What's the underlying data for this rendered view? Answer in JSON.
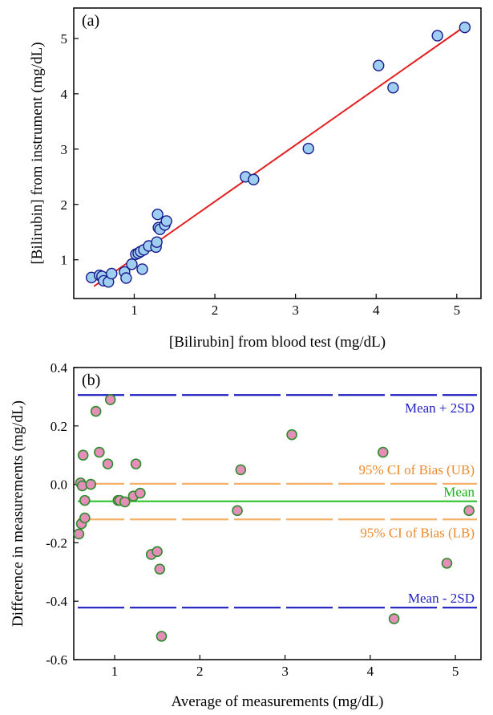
{
  "chart_data": [
    {
      "type": "scatter",
      "panel_label": "(a)",
      "xlabel": "[Bilirubin] from blood test (mg/dL)",
      "ylabel": "[Bilirubin] from instrument (mg/dL)",
      "xlim": [
        0.25,
        5.3
      ],
      "ylim": [
        0.3,
        5.55
      ],
      "xticks": [
        "1",
        "2",
        "3",
        "4",
        "5"
      ],
      "yticks": [
        "1",
        "2",
        "3",
        "4",
        "5"
      ],
      "grid": false,
      "points": {
        "x": [
          0.47,
          0.57,
          0.6,
          0.62,
          0.68,
          0.72,
          0.88,
          0.9,
          0.97,
          1.02,
          1.05,
          1.08,
          1.1,
          1.12,
          1.18,
          1.27,
          1.28,
          1.29,
          1.3,
          1.32,
          1.38,
          1.4,
          2.38,
          2.48,
          3.16,
          4.03,
          4.21,
          4.76,
          5.1
        ],
        "y": [
          0.68,
          0.72,
          0.7,
          0.62,
          0.6,
          0.75,
          0.78,
          0.67,
          0.92,
          1.1,
          1.12,
          1.15,
          0.83,
          1.18,
          1.25,
          1.23,
          1.32,
          1.82,
          1.58,
          1.55,
          1.63,
          1.7,
          2.5,
          2.45,
          3.01,
          4.51,
          4.11,
          5.05,
          5.2
        ],
        "color": "#9ecff0",
        "edge": "#1a1a8c"
      },
      "fit_line": {
        "x": [
          0.5,
          5.12
        ],
        "y": [
          0.52,
          5.24
        ],
        "color": "#e41f1f"
      }
    },
    {
      "type": "scatter",
      "panel_label": "(b)",
      "xlabel": "Average of measurements (mg/dL)",
      "ylabel": "Difference in measurements (mg/dL)",
      "xlim": [
        0.52,
        5.3
      ],
      "ylim": [
        -0.6,
        0.4
      ],
      "xticks": [
        "1",
        "2",
        "3",
        "4",
        "5"
      ],
      "yticks": [
        "0.4",
        "0.2",
        "0.0",
        "-0.2",
        "-0.4",
        "-0.6"
      ],
      "grid": false,
      "points": {
        "x": [
          0.58,
          0.6,
          0.61,
          0.62,
          0.63,
          0.65,
          0.65,
          0.72,
          0.78,
          0.82,
          0.92,
          0.95,
          1.04,
          1.06,
          1.12,
          1.22,
          1.25,
          1.3,
          1.43,
          1.5,
          1.53,
          1.55,
          2.44,
          2.48,
          3.08,
          4.15,
          4.28,
          4.9,
          5.16
        ],
        "y": [
          -0.17,
          0.005,
          -0.135,
          -0.005,
          0.1,
          -0.055,
          -0.115,
          0.0,
          0.25,
          0.11,
          0.07,
          0.29,
          -0.055,
          -0.055,
          -0.06,
          -0.04,
          0.07,
          -0.03,
          -0.24,
          -0.23,
          -0.29,
          -0.52,
          -0.09,
          0.05,
          0.17,
          0.11,
          -0.46,
          -0.27,
          -0.09
        ],
        "color": "#e58fb8",
        "edge": "#2e8b2e"
      },
      "reference_lines": [
        {
          "name": "Mean + 2SD",
          "y": 0.306,
          "style": "dashed",
          "color": "#1f1fbf"
        },
        {
          "name": "95% CI of Bias (UB)",
          "y": 0.002,
          "style": "dashed",
          "color": "#f5b06a"
        },
        {
          "name": "Mean",
          "y": -0.058,
          "style": "solid",
          "color": "#2ec42e"
        },
        {
          "name": "95% CI of Bias (LB)",
          "y": -0.12,
          "style": "dashed",
          "color": "#f5b06a"
        },
        {
          "name": "Mean - 2SD",
          "y": -0.422,
          "style": "dashed",
          "color": "#1f1fbf"
        }
      ],
      "annotation_colors": {
        "Mean + 2SD": "#1f1fbf",
        "95% CI of Bias (UB)": "#ef8a2a",
        "Mean": "#19b319",
        "95% CI of Bias (LB)": "#ef8a2a",
        "Mean - 2SD": "#1f1fbf"
      }
    }
  ]
}
